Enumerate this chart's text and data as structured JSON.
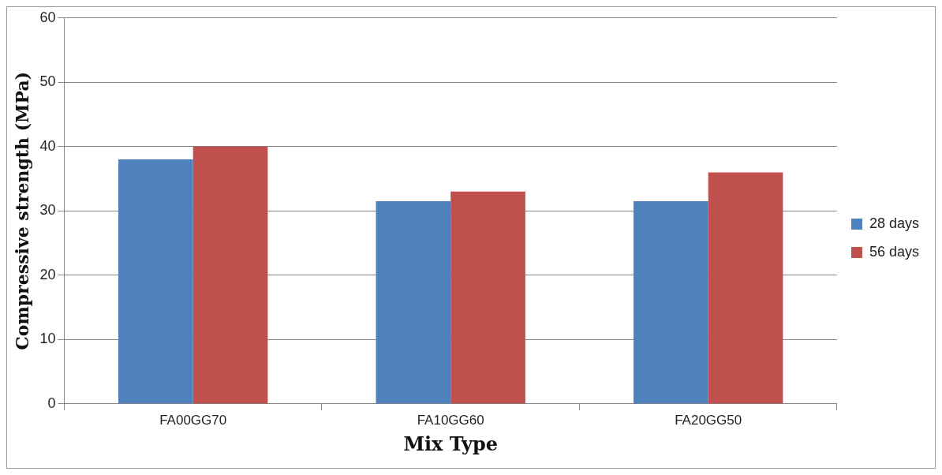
{
  "chart_data": {
    "type": "bar",
    "xlabel": "Mix Type",
    "ylabel": "Compressive strength (MPa)",
    "categories": [
      "FA00GG70",
      "FA10GG60",
      "FA20GG50"
    ],
    "series": [
      {
        "name": "28 days",
        "color": "#4f81bd",
        "values": [
          38,
          31.5,
          31.5
        ]
      },
      {
        "name": "56 days",
        "color": "#c0504d",
        "values": [
          40,
          33,
          36
        ]
      }
    ],
    "ylim": [
      0,
      60
    ],
    "yticks": [
      0,
      10,
      20,
      30,
      40,
      50,
      60
    ],
    "grid": "y",
    "legend": "right"
  }
}
